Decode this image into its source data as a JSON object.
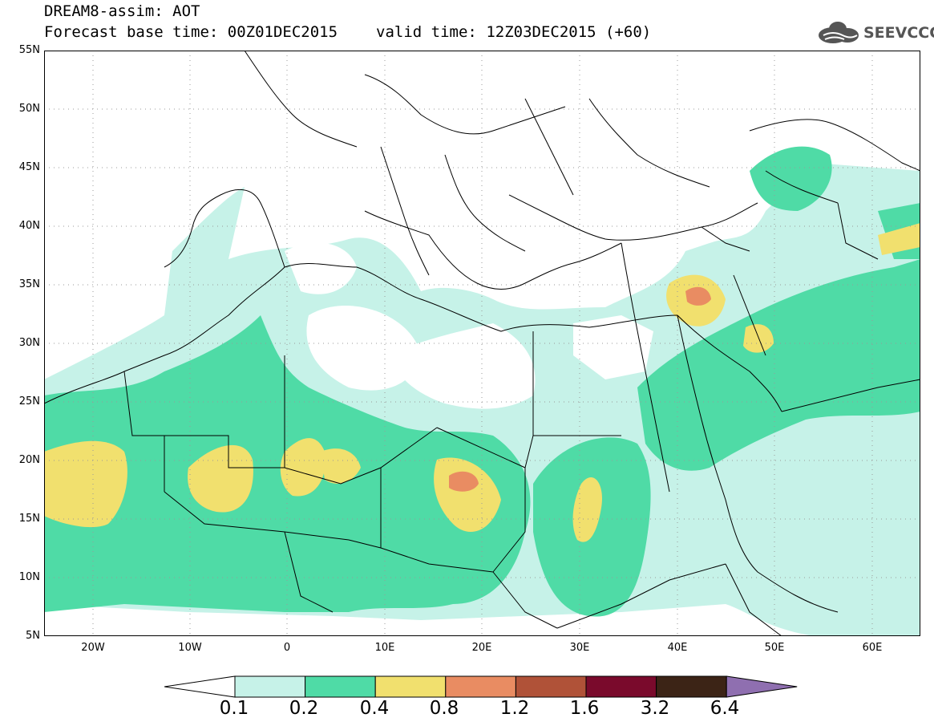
{
  "header": {
    "model_line": "DREAM8-assim: AOT",
    "base_time": "Forecast base time: 00Z01DEC2015",
    "valid_time": "valid time: 12Z03DEC2015 (+60)",
    "logo_text": "SEEVCCC"
  },
  "map": {
    "lat_labels": [
      "55N",
      "50N",
      "45N",
      "40N",
      "35N",
      "30N",
      "25N",
      "20N",
      "15N",
      "10N",
      "5N"
    ],
    "lon_labels": [
      "20W",
      "10W",
      "0",
      "10E",
      "20E",
      "30E",
      "40E",
      "50E",
      "60E"
    ],
    "lat_range": [
      5,
      55
    ],
    "lon_range": [
      -25,
      65
    ],
    "field": "AOT"
  },
  "legend": {
    "levels": [
      "0.1",
      "0.2",
      "0.4",
      "0.8",
      "1.2",
      "1.6",
      "3.2",
      "6.4"
    ],
    "colors": [
      "#ffffff",
      "#c6f2e8",
      "#4fdba6",
      "#f1e06e",
      "#e98c62",
      "#b05238",
      "#7a0a2c",
      "#3c2416",
      "#8f6fb0"
    ]
  }
}
